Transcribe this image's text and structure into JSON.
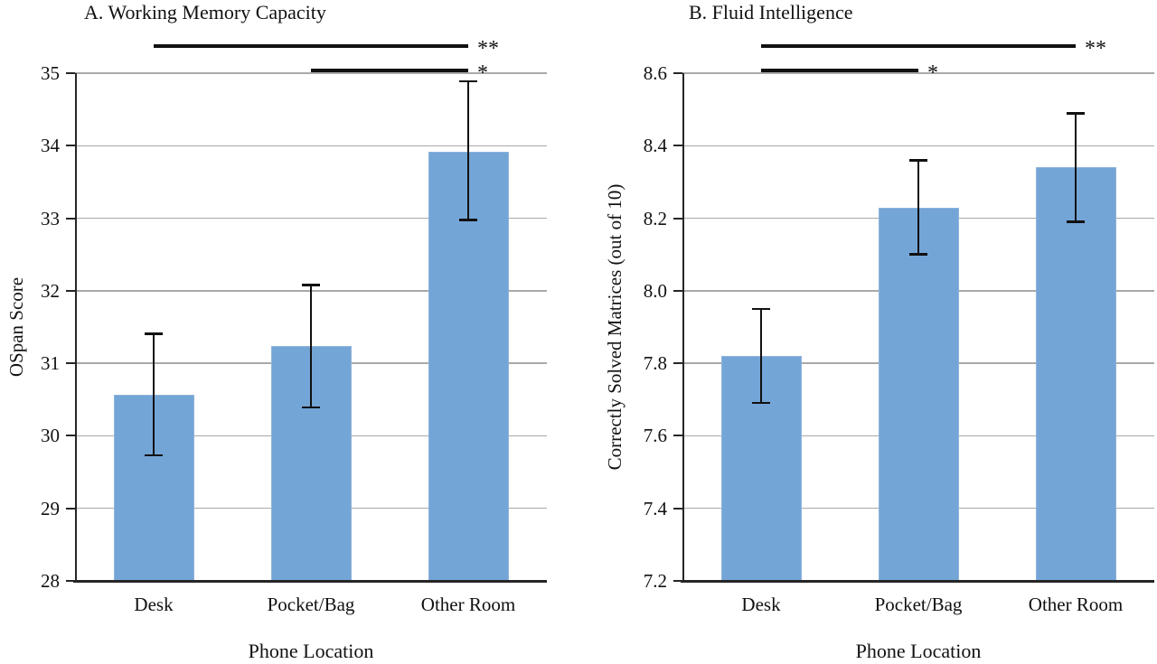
{
  "figure": {
    "bar_fill": "#74a5d7",
    "bar_border": "#8fb3da",
    "grid_color": "#a9a9a9",
    "axis_color": "#262626",
    "ink_color": "#111111"
  },
  "chart_data": [
    {
      "type": "bar",
      "panel": "A",
      "title": "A. Working Memory Capacity",
      "xlabel": "Phone Location",
      "ylabel": "OSpan Score",
      "categories": [
        "Desk",
        "Pocket/Bag",
        "Other Room"
      ],
      "values": [
        30.57,
        31.24,
        33.92
      ],
      "error_low": [
        29.73,
        30.39,
        32.97
      ],
      "error_high": [
        31.41,
        32.08,
        34.89
      ],
      "ylim": [
        28,
        35
      ],
      "ytick_step": 1,
      "ytick_labels": [
        "28",
        "29",
        "30",
        "31",
        "32",
        "33",
        "34",
        "35"
      ],
      "grid": true,
      "legend": "none",
      "significance": [
        {
          "from": 0,
          "to": 2,
          "label": "**",
          "level": 1
        },
        {
          "from": 1,
          "to": 2,
          "label": "*",
          "level": 2
        }
      ]
    },
    {
      "type": "bar",
      "panel": "B",
      "title": "B. Fluid Intelligence",
      "xlabel": "Phone Location",
      "ylabel": "Correctly Solved Matrices (out of 10)",
      "categories": [
        "Desk",
        "Pocket/Bag",
        "Other Room"
      ],
      "values": [
        7.82,
        8.23,
        8.34
      ],
      "error_low": [
        7.69,
        8.1,
        8.19
      ],
      "error_high": [
        7.95,
        8.36,
        8.49
      ],
      "ylim": [
        7.2,
        8.6
      ],
      "ytick_step": 0.2,
      "ytick_labels": [
        "7.2",
        "7.4",
        "7.6",
        "7.8",
        "8.0",
        "8.2",
        "8.4",
        "8.6"
      ],
      "grid": true,
      "legend": "none",
      "significance": [
        {
          "from": 0,
          "to": 2,
          "label": "**",
          "level": 1
        },
        {
          "from": 0,
          "to": 1,
          "label": "*",
          "level": 2
        }
      ]
    }
  ]
}
